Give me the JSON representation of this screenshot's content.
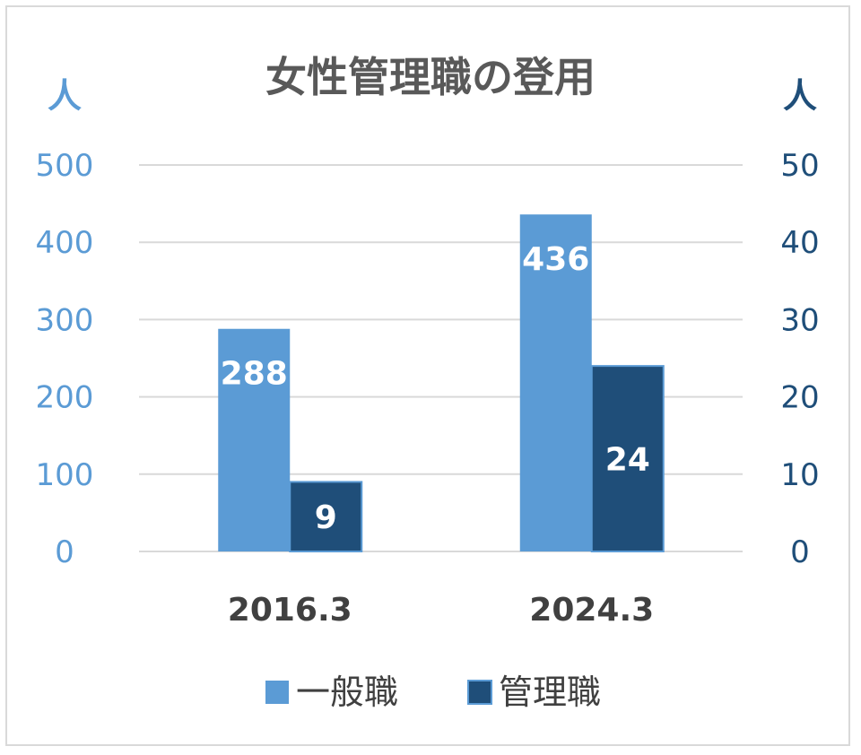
{
  "chart_data": {
    "type": "bar",
    "title": "女性管理職の登用",
    "categories": [
      "2016.3",
      "2024.3"
    ],
    "series": [
      {
        "name": "一般職",
        "values": [
          288,
          436
        ],
        "axis": "left",
        "color": "#5b9bd5"
      },
      {
        "name": "管理職",
        "values": [
          9,
          24
        ],
        "axis": "right",
        "color": "#1f4e79"
      }
    ],
    "y_left": {
      "unit": "人",
      "range": [
        0,
        500
      ],
      "ticks": [
        "0",
        "100",
        "200",
        "300",
        "400",
        "500"
      ],
      "color": "#5b9bd5"
    },
    "y_right": {
      "unit": "人",
      "range": [
        0,
        50
      ],
      "ticks": [
        "0",
        "10",
        "20",
        "30",
        "40",
        "50"
      ],
      "color": "#1f4e79"
    },
    "grid": true,
    "legend_position": "bottom",
    "data_labels": true
  }
}
